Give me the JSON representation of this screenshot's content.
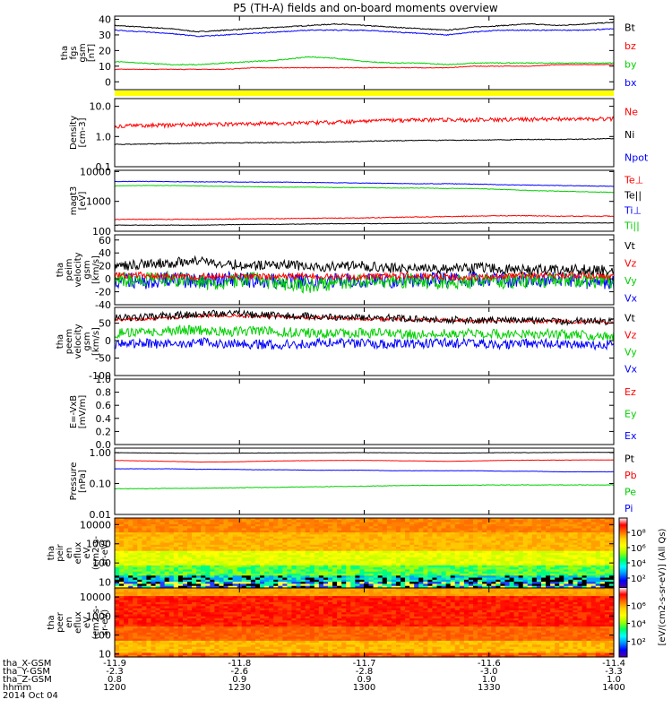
{
  "title": "P5 (TH-A) fields and on-board moments overview",
  "footer": {
    "row_labels": [
      "tha_X-GSM",
      "tha_Y-GSM",
      "tha_Z-GSM",
      "hhmm",
      "2014 Oct 04"
    ],
    "columns": [
      {
        "x": "-11.9",
        "y": "-2.3",
        "z": "0.8",
        "hhmm": "1200"
      },
      {
        "x": "-11.8",
        "y": "-2.6",
        "z": "0.9",
        "hhmm": "1230"
      },
      {
        "x": "-11.7",
        "y": "-2.8",
        "z": "0.9",
        "hhmm": "1300"
      },
      {
        "x": "-11.6",
        "y": "-3.0",
        "z": "1.0",
        "hhmm": "1330"
      },
      {
        "x": "-11.4",
        "y": "-3.3",
        "z": "1.0",
        "hhmm": "1400"
      }
    ]
  },
  "colorbar": {
    "label": "[eV/(cm2-s-sr-eV)] (All Qs)",
    "ticks_top": [
      "10⁸",
      "10⁶",
      "10⁴",
      "10²"
    ],
    "ticks_bottom": [
      "10⁶",
      "10⁴",
      "10²"
    ],
    "colors": [
      "#ffffff",
      "#ff0000",
      "#ff6a00",
      "#ffd000",
      "#ffff00",
      "#a0ff00",
      "#00ff60",
      "#00ffff",
      "#0090ff",
      "#0000ff",
      "#5000a0"
    ]
  },
  "chart_data": [
    {
      "type": "line",
      "id": "fgs",
      "ylabel": "tha\nfgs\ngsm\n[nT]",
      "scale": "linear",
      "ylim": [
        -5,
        42
      ],
      "ticks": [
        {
          "v": 40,
          "l": "40"
        },
        {
          "v": 30,
          "l": "30"
        },
        {
          "v": 20,
          "l": "20"
        },
        {
          "v": 10,
          "l": "10"
        },
        {
          "v": 0,
          "l": "0"
        }
      ],
      "legend": [
        {
          "name": "Bt",
          "color": "#000000"
        },
        {
          "name": "bz",
          "color": "#ff0000"
        },
        {
          "name": "by",
          "color": "#00d000"
        },
        {
          "name": "bx",
          "color": "#0000ff"
        }
      ],
      "series": [
        {
          "name": "Bt",
          "color": "#000000",
          "noise": 0.3,
          "values": [
            36,
            35,
            34,
            32,
            33,
            34,
            35,
            36,
            37,
            36,
            35,
            34,
            33,
            35,
            36,
            37,
            36,
            37,
            38
          ]
        },
        {
          "name": "bx",
          "color": "#0000ff",
          "noise": 0.3,
          "values": [
            33,
            32,
            31,
            29,
            30,
            31,
            32,
            33,
            33,
            33,
            32,
            31,
            30,
            32,
            33,
            33,
            33,
            33,
            34
          ]
        },
        {
          "name": "by",
          "color": "#00d000",
          "noise": 0.3,
          "values": [
            13,
            12,
            11,
            11,
            12,
            13,
            14,
            16,
            15,
            13,
            12,
            12,
            11,
            12,
            12,
            12,
            12,
            12,
            12
          ]
        },
        {
          "name": "bz",
          "color": "#ff0000",
          "noise": 0.2,
          "values": [
            8,
            8,
            8,
            8,
            8,
            9,
            9,
            9,
            9,
            9,
            9,
            9,
            9,
            10,
            10,
            10,
            11,
            11,
            11
          ]
        }
      ]
    },
    {
      "type": "line",
      "id": "density",
      "ylabel": "Density\n[cm-3]",
      "scale": "log",
      "ylim": [
        0.1,
        18
      ],
      "ticks": [
        {
          "v": 10,
          "l": "10.0"
        },
        {
          "v": 1,
          "l": "1.0"
        },
        {
          "v": 0.1,
          "l": "0.1"
        }
      ],
      "legend": [
        {
          "name": "Ne",
          "color": "#ff0000"
        },
        {
          "name": "Ni",
          "color": "#000000"
        },
        {
          "name": "Npot",
          "color": "#0000ff"
        }
      ],
      "series": [
        {
          "name": "Ni",
          "color": "#000000",
          "noise": 0.03,
          "values": [
            0.55,
            0.56,
            0.58,
            0.6,
            0.62,
            0.62,
            0.63,
            0.65,
            0.66,
            0.7,
            0.72,
            0.74,
            0.75,
            0.76,
            0.78,
            0.8,
            0.8,
            0.82,
            0.85
          ]
        },
        {
          "name": "Ne",
          "color": "#ff0000",
          "noise": 0.15,
          "values": [
            2.2,
            2.3,
            2.4,
            2.5,
            2.6,
            2.7,
            2.7,
            2.8,
            3.0,
            3.2,
            3.4,
            3.5,
            3.6,
            3.6,
            3.7,
            3.7,
            3.8,
            3.8,
            3.9
          ]
        }
      ]
    },
    {
      "type": "line",
      "id": "temp",
      "ylabel": "magt3\n[eV]",
      "scale": "log",
      "ylim": [
        100,
        11000
      ],
      "ticks": [
        {
          "v": 10000,
          "l": "10000"
        },
        {
          "v": 1000,
          "l": "1000"
        },
        {
          "v": 100,
          "l": "100"
        }
      ],
      "legend": [
        {
          "name": "Te⊥",
          "color": "#ff0000"
        },
        {
          "name": "Te||",
          "color": "#000000"
        },
        {
          "name": "Ti⊥",
          "color": "#0000ff"
        },
        {
          "name": "Ti||",
          "color": "#00d000"
        }
      ],
      "series": [
        {
          "name": "Ti⊥",
          "color": "#0000ff",
          "noise": 0.02,
          "values": [
            4600,
            4700,
            4600,
            4500,
            4500,
            4400,
            4400,
            4300,
            4200,
            4100,
            4000,
            3900,
            3900,
            3800,
            3600,
            3500,
            3400,
            3300,
            3200
          ]
        },
        {
          "name": "Ti||",
          "color": "#00d000",
          "noise": 0.02,
          "values": [
            3300,
            3400,
            3400,
            3300,
            3200,
            3100,
            3000,
            3000,
            2900,
            2900,
            2800,
            2800,
            2700,
            2700,
            2500,
            2300,
            2200,
            2100,
            2000
          ]
        },
        {
          "name": "Te⊥",
          "color": "#ff0000",
          "noise": 0.03,
          "values": [
            250,
            250,
            250,
            250,
            255,
            260,
            265,
            270,
            275,
            280,
            290,
            300,
            310,
            320,
            330,
            330,
            320,
            320,
            320
          ]
        },
        {
          "name": "Te||",
          "color": "#000000",
          "noise": 0.02,
          "values": [
            160,
            160,
            160,
            160,
            165,
            170,
            170,
            175,
            180,
            180,
            180,
            185,
            185,
            190,
            190,
            190,
            190,
            190,
            190
          ]
        }
      ]
    },
    {
      "type": "line",
      "id": "peim",
      "ylabel": "tha\npeim\nvelocity\ngsm\n[km/s]",
      "scale": "linear",
      "ylim": [
        -40,
        68
      ],
      "ticks": [
        {
          "v": 60,
          "l": "60"
        },
        {
          "v": 40,
          "l": "40"
        },
        {
          "v": 20,
          "l": "20"
        },
        {
          "v": 0,
          "l": "0"
        },
        {
          "v": -20,
          "l": "-20"
        },
        {
          "v": -40,
          "l": "-40"
        }
      ],
      "legend": [
        {
          "name": "Vt",
          "color": "#000000"
        },
        {
          "name": "Vz",
          "color": "#ff0000"
        },
        {
          "name": "Vy",
          "color": "#00d000"
        },
        {
          "name": "Vx",
          "color": "#0000ff"
        }
      ],
      "series": [
        {
          "name": "Vx",
          "color": "#0000ff",
          "noise": 12,
          "values": [
            -2,
            -4,
            -1,
            -3,
            0,
            -2,
            -3,
            -4,
            -1,
            -2,
            -3,
            -1,
            -2,
            0,
            -3,
            -1,
            -2,
            -4,
            -5
          ]
        },
        {
          "name": "Vy",
          "color": "#00d000",
          "noise": 12,
          "values": [
            0,
            -3,
            1,
            -5,
            -6,
            0,
            -8,
            -10,
            -5,
            -3,
            -2,
            -4,
            -6,
            -3,
            -4,
            -2,
            -1,
            -3,
            -2
          ]
        },
        {
          "name": "Vz",
          "color": "#ff0000",
          "noise": 5,
          "values": [
            5,
            6,
            4,
            3,
            5,
            4,
            3,
            5,
            2,
            3,
            4,
            5,
            3,
            2,
            4,
            5,
            6,
            5,
            4
          ]
        },
        {
          "name": "Vt",
          "color": "#000000",
          "noise": 8,
          "values": [
            18,
            22,
            25,
            28,
            24,
            20,
            22,
            20,
            18,
            20,
            16,
            18,
            16,
            17,
            15,
            14,
            14,
            14,
            13
          ]
        }
      ]
    },
    {
      "type": "line",
      "id": "peem",
      "ylabel": "tha\npeem\nvelocity\ngsm\n[km/s]",
      "scale": "linear",
      "ylim": [
        -100,
        95
      ],
      "ticks": [
        {
          "v": 50,
          "l": "50"
        },
        {
          "v": 0,
          "l": "0"
        },
        {
          "v": -50,
          "l": "-50"
        },
        {
          "v": -100,
          "l": "-100"
        }
      ],
      "legend": [
        {
          "name": "Vt",
          "color": "#000000"
        },
        {
          "name": "Vz",
          "color": "#ff0000"
        },
        {
          "name": "Vy",
          "color": "#00d000"
        },
        {
          "name": "Vx",
          "color": "#0000ff"
        }
      ],
      "series": [
        {
          "name": "Vx",
          "color": "#0000ff",
          "noise": 14,
          "values": [
            -10,
            -8,
            -10,
            -5,
            -8,
            -10,
            -12,
            -8,
            -6,
            -8,
            -10,
            -8,
            -6,
            -8,
            -10,
            -8,
            -10,
            -12,
            -12
          ]
        },
        {
          "name": "Vy",
          "color": "#00d000",
          "noise": 14,
          "values": [
            20,
            25,
            28,
            30,
            25,
            28,
            25,
            22,
            20,
            22,
            20,
            18,
            20,
            22,
            18,
            20,
            18,
            15,
            15
          ]
        },
        {
          "name": "Vz",
          "color": "#ff0000",
          "noise": 5,
          "values": [
            60,
            62,
            65,
            70,
            72,
            70,
            68,
            66,
            65,
            62,
            62,
            60,
            58,
            56,
            56,
            55,
            55,
            54,
            52
          ]
        },
        {
          "name": "Vt",
          "color": "#000000",
          "noise": 10,
          "values": [
            65,
            68,
            72,
            75,
            78,
            75,
            72,
            70,
            68,
            66,
            65,
            62,
            60,
            58,
            58,
            57,
            56,
            55,
            54
          ]
        }
      ]
    },
    {
      "type": "line",
      "id": "efield",
      "ylabel": "E=-VxB\n[mV/m]",
      "scale": "linear",
      "ylim": [
        0,
        1
      ],
      "ticks": [
        {
          "v": 1,
          "l": "1.0"
        },
        {
          "v": 0.8,
          "l": "0.8"
        },
        {
          "v": 0.6,
          "l": "0.6"
        },
        {
          "v": 0.4,
          "l": "0.4"
        },
        {
          "v": 0.2,
          "l": "0.2"
        },
        {
          "v": 0,
          "l": "0.0"
        }
      ],
      "legend": [
        {
          "name": "Ez",
          "color": "#ff0000"
        },
        {
          "name": "Ey",
          "color": "#00d000"
        },
        {
          "name": "Ex",
          "color": "#0000ff"
        }
      ],
      "series": []
    },
    {
      "type": "line",
      "id": "pressure",
      "ylabel": "Pressure\n[nPa]",
      "scale": "log",
      "ylim": [
        0.01,
        1.4
      ],
      "ticks": [
        {
          "v": 1,
          "l": "1.00"
        },
        {
          "v": 0.1,
          "l": "0.10"
        },
        {
          "v": 0.01,
          "l": "0.01"
        }
      ],
      "legend": [
        {
          "name": "Pt",
          "color": "#000000"
        },
        {
          "name": "Pb",
          "color": "#ff0000"
        },
        {
          "name": "Pe",
          "color": "#00d000"
        },
        {
          "name": "Pi",
          "color": "#0000ff"
        }
      ],
      "series": [
        {
          "name": "Pt",
          "color": "#000000",
          "noise": 0.01,
          "values": [
            1.0,
            0.98,
            0.97,
            0.95,
            0.96,
            0.97,
            0.98,
            0.99,
            1.0,
            1.0,
            0.99,
            0.98,
            0.97,
            0.98,
            1.0,
            1.0,
            1.01,
            1.02,
            1.02
          ]
        },
        {
          "name": "Pb",
          "color": "#ff0000",
          "noise": 0.01,
          "values": [
            0.56,
            0.54,
            0.52,
            0.5,
            0.5,
            0.52,
            0.54,
            0.55,
            0.56,
            0.56,
            0.55,
            0.54,
            0.52,
            0.54,
            0.56,
            0.57,
            0.57,
            0.58,
            0.58
          ]
        },
        {
          "name": "Pi",
          "color": "#0000ff",
          "noise": 0.01,
          "values": [
            0.3,
            0.3,
            0.3,
            0.29,
            0.29,
            0.28,
            0.28,
            0.27,
            0.27,
            0.27,
            0.26,
            0.26,
            0.26,
            0.26,
            0.25,
            0.25,
            0.24,
            0.24,
            0.24
          ]
        },
        {
          "name": "Pe",
          "color": "#00d000",
          "noise": 0.02,
          "values": [
            0.068,
            0.068,
            0.07,
            0.07,
            0.072,
            0.074,
            0.076,
            0.078,
            0.08,
            0.082,
            0.085,
            0.087,
            0.088,
            0.089,
            0.09,
            0.09,
            0.09,
            0.09,
            0.09
          ]
        }
      ]
    },
    {
      "type": "heatmap",
      "id": "peir",
      "ylabel": "tha\npeir\nen\neflux\neV\n(cm2-s-\nsr-eV)",
      "scale": "log",
      "ylim": [
        5,
        22000
      ],
      "ticks": [
        {
          "v": 10000,
          "l": "10000"
        },
        {
          "v": 1000,
          "l": "1000"
        },
        {
          "v": 100,
          "l": "100"
        },
        {
          "v": 10,
          "l": "10"
        }
      ]
    },
    {
      "type": "heatmap",
      "id": "peer",
      "ylabel": "tha\npeer\nen\neflux\neV\n(cm2-s-\nsr-eV)",
      "scale": "log",
      "ylim": [
        7,
        30000
      ],
      "ticks": [
        {
          "v": 10000,
          "l": "10000"
        },
        {
          "v": 1000,
          "l": "1000"
        },
        {
          "v": 100,
          "l": "100"
        },
        {
          "v": 10,
          "l": "10"
        }
      ]
    }
  ]
}
